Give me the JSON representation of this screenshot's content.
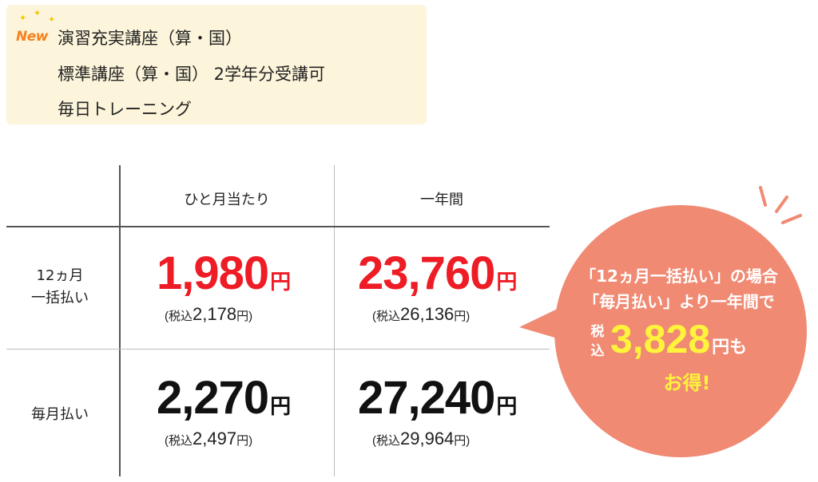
{
  "info": {
    "badge": "New",
    "line1": "演習充実講座（算・国）",
    "line2": "標準講座（算・国） 2学年分受講可",
    "line3": "毎日トレーニング"
  },
  "table": {
    "col_headers": [
      "ひと月当たり",
      "一年間"
    ],
    "rows": [
      {
        "label_line1": "12ヵ月",
        "label_line2": "一括払い",
        "monthly": {
          "price": "1,980",
          "yen": "円",
          "tax_prefix": "(税込",
          "tax_value": "2,178",
          "tax_suffix": "円)"
        },
        "yearly": {
          "price": "23,760",
          "yen": "円",
          "tax_prefix": "(税込",
          "tax_value": "26,136",
          "tax_suffix": "円)"
        }
      },
      {
        "label_line1": "毎月払い",
        "monthly": {
          "price": "2,270",
          "yen": "円",
          "tax_prefix": "(税込",
          "tax_value": "2,497",
          "tax_suffix": "円)"
        },
        "yearly": {
          "price": "27,240",
          "yen": "円",
          "tax_prefix": "(税込",
          "tax_value": "29,964",
          "tax_suffix": "円)"
        }
      }
    ]
  },
  "bubble": {
    "line1": "「12ヵ月一括払い」の場合",
    "line2": "「毎月払い」より一年間で",
    "tax_top": "税",
    "tax_bottom": "込",
    "amount": "3,828",
    "suffix": "円",
    "suffix2": "も",
    "line4": "お得!"
  },
  "colors": {
    "highlight_red": "#ee1c25",
    "bubble_fill": "#f08a73",
    "bubble_accent": "#fff33c",
    "info_bg": "#fdf5db"
  }
}
